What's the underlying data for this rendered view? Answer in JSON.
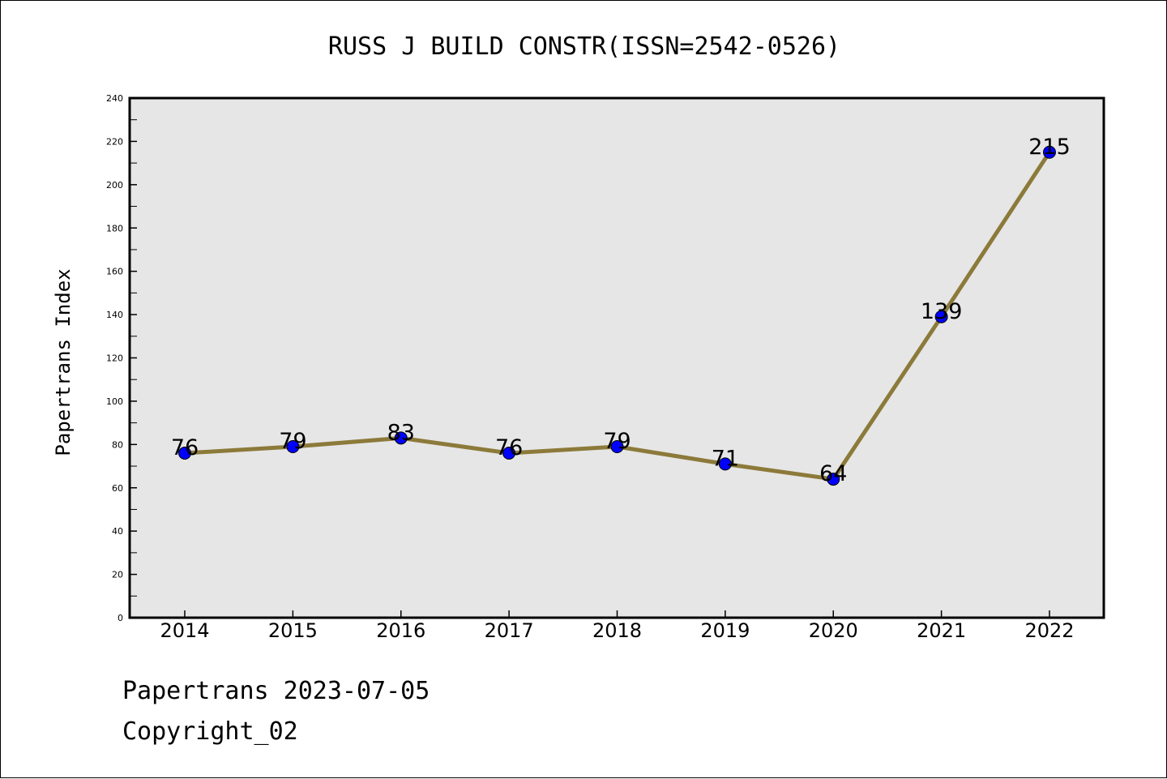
{
  "chart_data": {
    "type": "line",
    "title": "RUSS J BUILD CONSTR(ISSN=2542-0526)",
    "xlabel": "",
    "ylabel": "Papertrans Index",
    "categories": [
      "2014",
      "2015",
      "2016",
      "2017",
      "2018",
      "2019",
      "2020",
      "2021",
      "2022"
    ],
    "series": [
      {
        "values": [
          76,
          79,
          83,
          76,
          79,
          71,
          64,
          139,
          215
        ]
      }
    ],
    "ylim": [
      0,
      240
    ],
    "yticks": [
      "0",
      "20",
      "40",
      "60",
      "80",
      "100",
      "120",
      "140",
      "160",
      "180",
      "200",
      "220",
      "240"
    ],
    "data_labels": [
      "76",
      "79",
      "83",
      "76",
      "79",
      "71",
      "64",
      "139",
      "215"
    ],
    "grid": false,
    "legend": "none",
    "colors": {
      "line": "#8c7a3a",
      "marker": "#0000ff",
      "plot_background": "#e6e6e6"
    }
  },
  "footer": {
    "date_line": "Papertrans 2023-07-05",
    "copyright_line": "Copyright_02"
  }
}
